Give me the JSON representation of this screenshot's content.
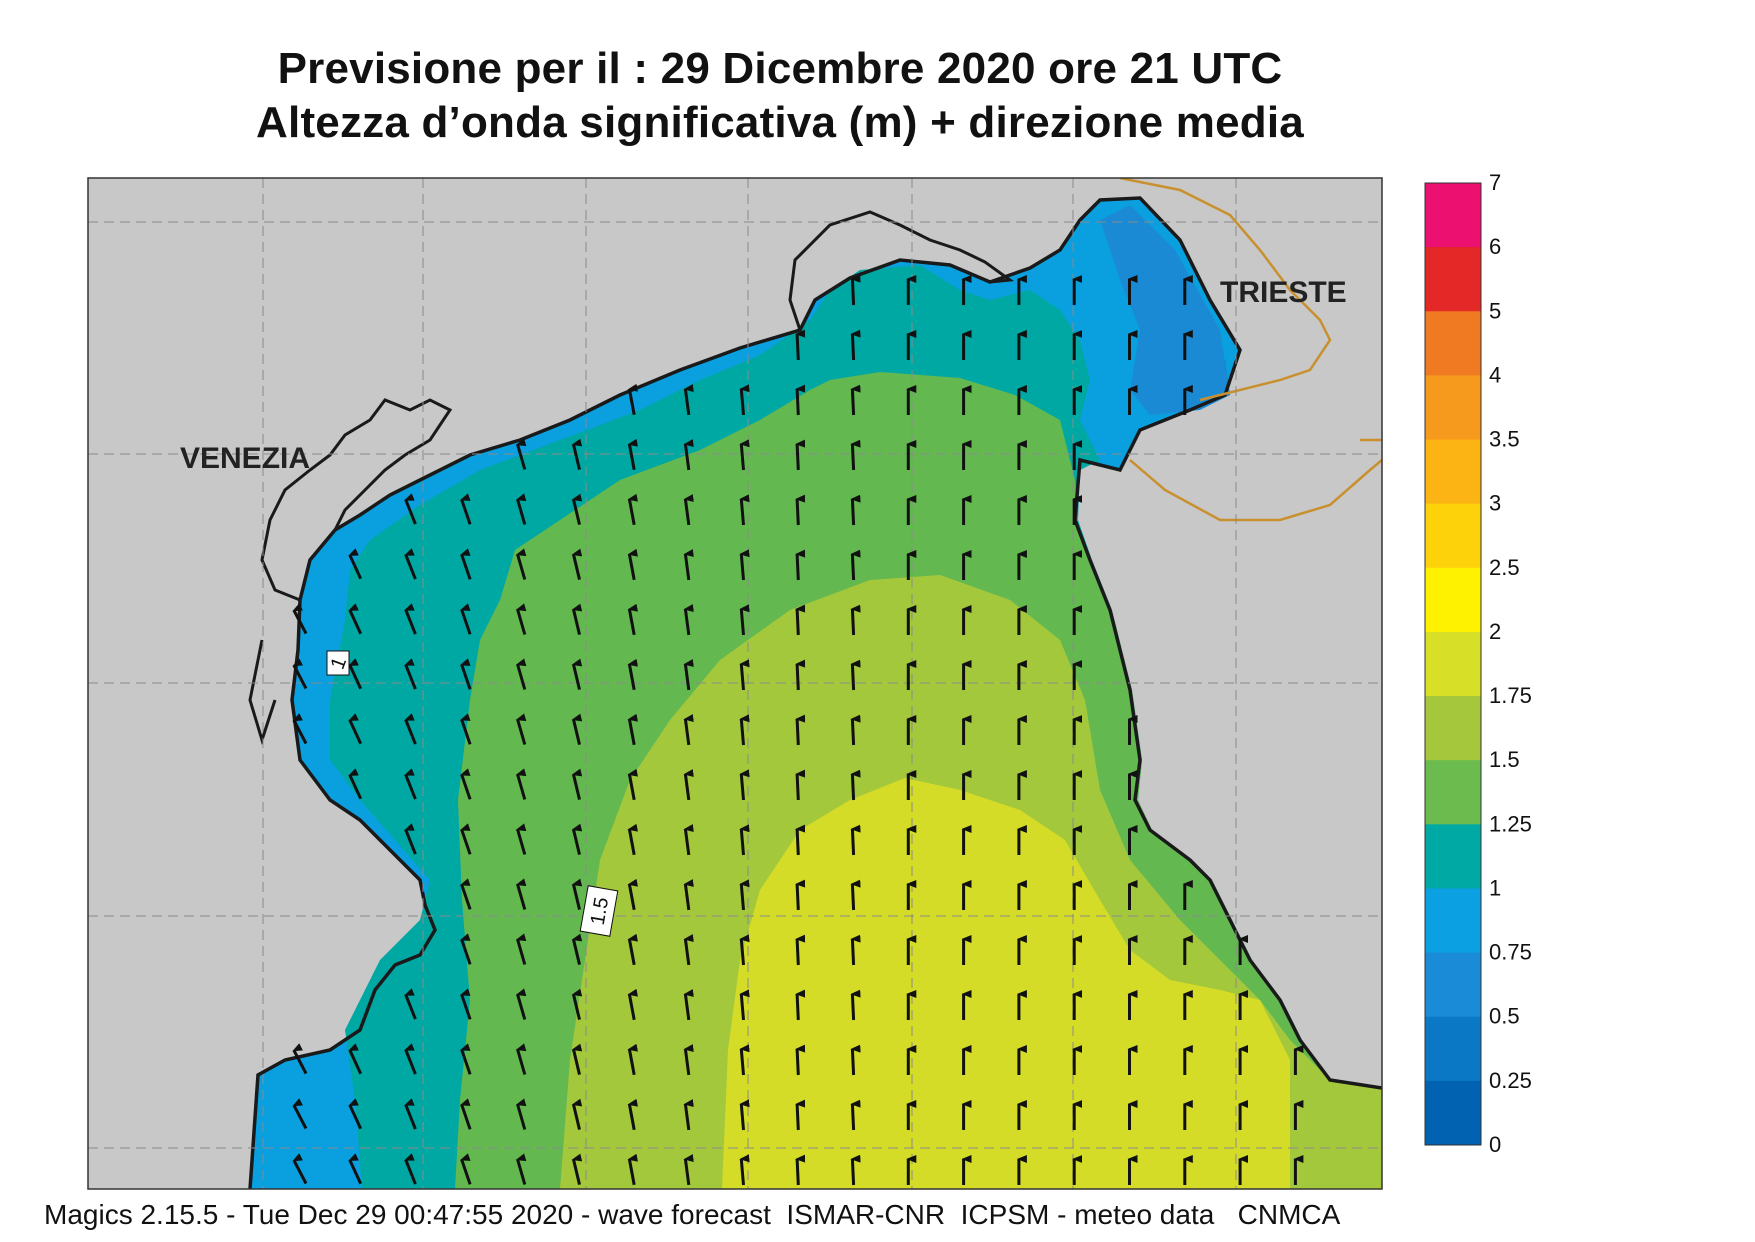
{
  "header": {
    "title_line1": "Previsione per il  :  29 Dicembre  2020    ore 21 UTC",
    "title_line2": "Altezza d’onda significativa (m) + direzione media"
  },
  "map": {
    "cities": [
      {
        "name": "VENEZIA"
      },
      {
        "name": "TRIESTE"
      }
    ],
    "contour_labels": [
      "1",
      "1.5"
    ],
    "colors": {
      "land": "#c8c8c8",
      "coast": "#1a1a1a",
      "border": "#c8902e",
      "h_025_05": "#0a78c4",
      "h_05_075": "#1a8ad4",
      "h_075_1": "#0aa0e0",
      "h_1_125": "#00a8a4",
      "h_125_15": "#64b850",
      "h_15_175": "#a4c83c",
      "h_175_2": "#d4dc28"
    },
    "arrow_icon": "arrow-north-icon"
  },
  "legend": {
    "levels": [
      "7",
      "6",
      "5",
      "4",
      "3.5",
      "3",
      "2.5",
      "2",
      "1.75",
      "1.5",
      "1.25",
      "1",
      "0.75",
      "0.5",
      "0.25",
      "0"
    ],
    "colors": [
      "#ec1071",
      "#e42828",
      "#f07a22",
      "#f59a1c",
      "#fbb414",
      "#fdd20a",
      "#fef200",
      "#d7df26",
      "#a4c73c",
      "#6bbb4f",
      "#00a9a4",
      "#0aa0e1",
      "#1a8bd6",
      "#0a78c4",
      "#0062b0"
    ]
  },
  "footer": {
    "text": "Magics 2.15.5 - Tue Dec 29 00:47:55 2020 - wave forecast  ISMAR-CNR  ICPSM - meteo data   CNMCA"
  }
}
